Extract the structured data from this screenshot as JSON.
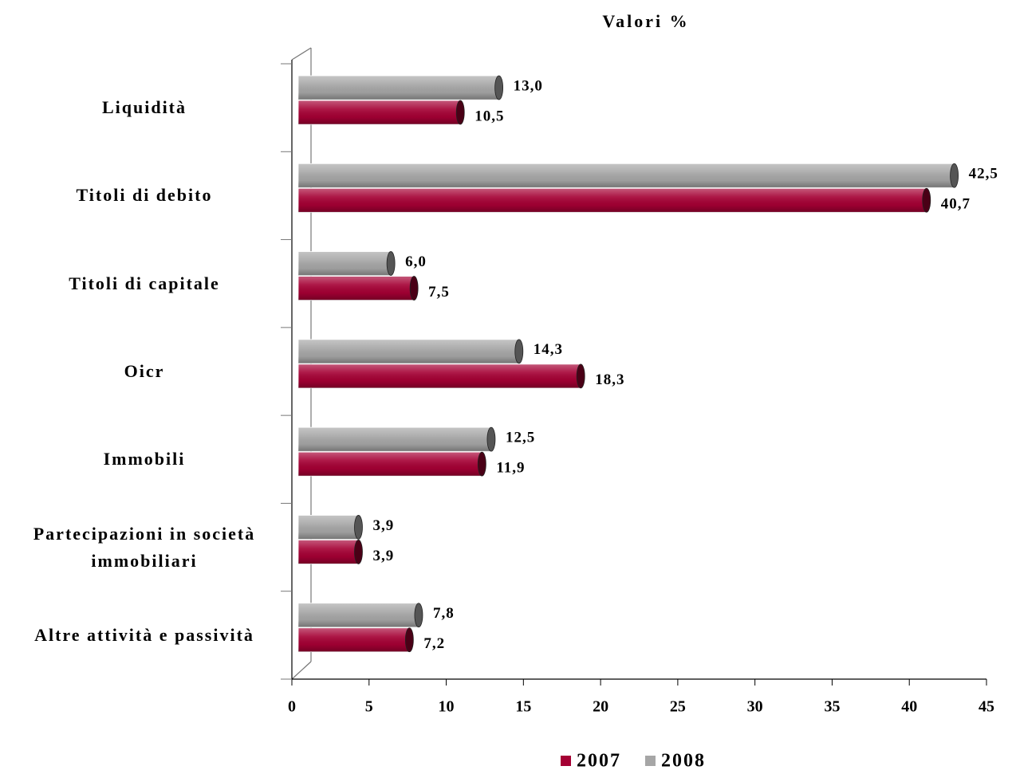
{
  "chart_data": {
    "type": "bar",
    "orientation": "horizontal",
    "title": "Valori %",
    "categories": [
      "Liquidità",
      "Titoli di debito",
      "Titoli di capitale",
      "Oicr",
      "Immobili",
      "Partecipazioni in società immobiliari",
      "Altre attività e passività"
    ],
    "series": [
      {
        "name": "2007",
        "color": "#a50034",
        "values": [
          10.5,
          40.7,
          7.5,
          18.3,
          11.9,
          3.9,
          7.2
        ],
        "value_labels": [
          "10,5",
          "40,7",
          "7,5",
          "18,3",
          "11,9",
          "3,9",
          "7,2"
        ]
      },
      {
        "name": "2008",
        "color": "#a6a6a6",
        "values": [
          13.0,
          42.5,
          6.0,
          14.3,
          12.5,
          3.9,
          7.8
        ],
        "value_labels": [
          "13,0",
          "42,5",
          "6,0",
          "14,3",
          "12,5",
          "3,9",
          "7,8"
        ]
      }
    ],
    "xlim": [
      0,
      45
    ],
    "xticks": [
      0,
      5,
      10,
      15,
      20,
      25,
      30,
      35,
      40,
      45
    ],
    "legend": "bottom"
  }
}
